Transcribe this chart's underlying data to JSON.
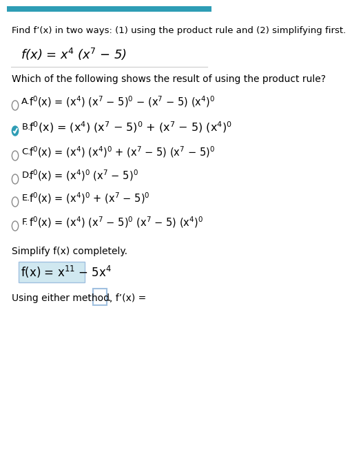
{
  "title_bar_color": "#2e9db5",
  "title_bar_height": 0.012,
  "background_color": "#ffffff",
  "text_color": "#000000",
  "header_text": "Find f’(x) in two ways: (1) using the product rule and (2) simplifying first.",
  "function_display": "f(x) = x⁴ (x⁷ − 5)",
  "question_text": "Which of the following shows the result of using the product rule?",
  "options": [
    {
      "label": "A.",
      "text": "f’(x) = (x⁴) (x⁷ − 5)’ − (x⁷ − 5) (x⁴)’",
      "selected": false,
      "correct": false
    },
    {
      "label": "B.",
      "text": "f’(x) = (x⁴) (x⁷ − 5)’ + (x⁷ − 5) (x⁴)’",
      "selected": true,
      "correct": true
    },
    {
      "label": "C.",
      "text": "f’(x) = (x⁴) (x⁴)’ + (x⁷ − 5) (x⁷ − 5)’",
      "selected": false,
      "correct": false
    },
    {
      "label": "D.",
      "text": "f’(x) = (x⁴)’ (x⁷ − 5)’",
      "selected": false,
      "correct": false
    },
    {
      "label": "E.",
      "text": "f’(x) = (x⁴)’ + (x⁷ − 5)’",
      "selected": false,
      "correct": false
    },
    {
      "label": "F.",
      "text": "f’(x) = (x⁴) (x⁷ − 5)’ (x⁷ − 5) (x⁴)’",
      "selected": false,
      "correct": false
    }
  ],
  "simplify_label": "Simplify f(x) completely.",
  "simplified_function": "f(x) = x¹¹ − 5x⁴",
  "final_label": "Using either method, f’(x) = ",
  "divider_color": "#cccccc",
  "option_font_size": 11,
  "header_font_size": 9.5,
  "check_color": "#2e9db5",
  "highlight_color": "#d0e8f0",
  "box_color": "#a0c0e0"
}
